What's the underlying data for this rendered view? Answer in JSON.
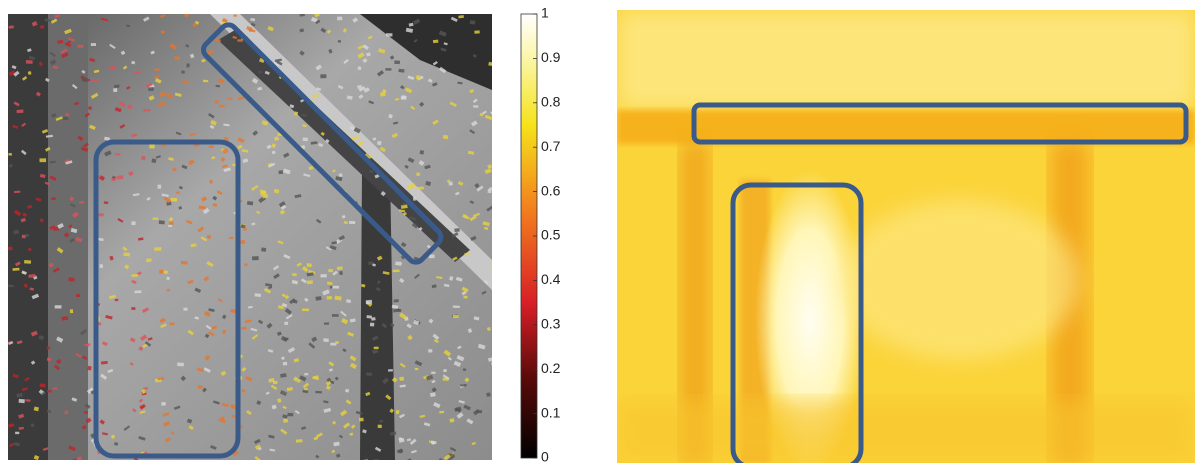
{
  "colorbar": {
    "lim": [
      0,
      1
    ],
    "ticks": [
      0,
      0.1,
      0.2,
      0.3,
      0.4,
      0.5,
      0.6,
      0.7,
      0.8,
      0.9,
      1
    ]
  }
}
